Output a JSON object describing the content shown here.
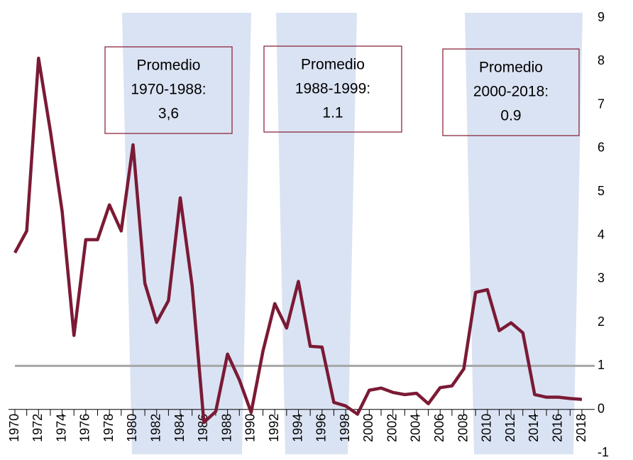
{
  "chart_data": {
    "type": "line",
    "x": [
      1970,
      1971,
      1972,
      1973,
      1974,
      1975,
      1976,
      1977,
      1978,
      1979,
      1980,
      1981,
      1982,
      1983,
      1984,
      1985,
      1986,
      1987,
      1988,
      1989,
      1990,
      1991,
      1992,
      1993,
      1994,
      1995,
      1996,
      1997,
      1998,
      1999,
      2000,
      2001,
      2002,
      2003,
      2004,
      2005,
      2006,
      2007,
      2008,
      2009,
      2010,
      2011,
      2012,
      2013,
      2014,
      2015,
      2016,
      2017,
      2018
    ],
    "series": [
      {
        "color": "#7b1a35",
        "values": [
          3.6,
          4.1,
          8.07,
          6.4,
          4.55,
          1.7,
          3.9,
          3.9,
          4.7,
          4.1,
          6.08,
          2.9,
          2.0,
          2.5,
          4.86,
          2.85,
          -0.3,
          -0.05,
          1.27,
          0.68,
          -0.07,
          1.34,
          2.43,
          1.87,
          2.94,
          1.45,
          1.43,
          0.16,
          0.08,
          -0.11,
          0.44,
          0.49,
          0.39,
          0.34,
          0.37,
          0.13,
          0.5,
          0.54,
          0.93,
          2.69,
          2.75,
          1.81,
          1.99,
          1.76,
          0.34,
          0.28,
          0.28,
          0.25,
          0.23
        ]
      }
    ],
    "reference_line": {
      "value": 1,
      "color": "#a6a6a6"
    },
    "xlim": [
      1970,
      2018
    ],
    "xticks": [
      1970,
      1972,
      1974,
      1976,
      1978,
      1980,
      1982,
      1984,
      1986,
      1988,
      1990,
      1992,
      1994,
      1996,
      1998,
      2000,
      2002,
      2004,
      2006,
      2008,
      2010,
      2012,
      2014,
      2016,
      2018
    ],
    "ylim": [
      -1,
      9
    ],
    "yticks": [
      -1,
      0,
      1,
      2,
      3,
      4,
      5,
      6,
      7,
      8,
      9
    ],
    "annotations": [
      {
        "lines": [
          "Promedio",
          "1970-1988:",
          "3,6"
        ]
      },
      {
        "lines": [
          "Promedio",
          "1988-1999:",
          "1.1"
        ]
      },
      {
        "lines": [
          "Promedio",
          "2000-2018:",
          "0.9"
        ]
      }
    ]
  }
}
